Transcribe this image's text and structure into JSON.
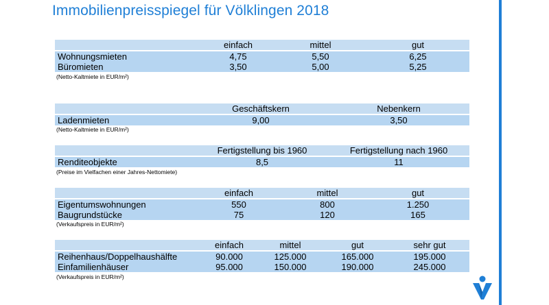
{
  "title": "Immobilienpreisspiegel für Völklingen 2018",
  "colors": {
    "accent": "#1f7fd6",
    "header_band": "#c6ddf2",
    "data_band": "#b6d5f1"
  },
  "tables": {
    "t1": {
      "headers": [
        "einfach",
        "mittel",
        "gut"
      ],
      "rows": [
        {
          "label": "Wohnungsmieten",
          "values": [
            "4,75",
            "5,50",
            "6,25"
          ]
        },
        {
          "label": "Büromieten",
          "values": [
            "3,50",
            "5,00",
            "5,25"
          ]
        }
      ],
      "note": "(Netto-Kaltmiete in EUR/m²)"
    },
    "t2": {
      "headers": [
        "Geschäftskern",
        "Nebenkern"
      ],
      "rows": [
        {
          "label": "Ladenmieten",
          "values": [
            "9,00",
            "3,50"
          ]
        }
      ],
      "note": "(Netto-Kaltmiete in EUR/m²)"
    },
    "t3": {
      "headers": [
        "Fertigstellung bis 1960",
        "Fertigstellung nach 1960"
      ],
      "rows": [
        {
          "label": "Renditeobjekte",
          "values": [
            "8,5",
            "11"
          ]
        }
      ],
      "note": "(Preise im Vielfachen einer Jahres-Nettomiete)"
    },
    "t4": {
      "headers": [
        "einfach",
        "mittel",
        "gut"
      ],
      "rows": [
        {
          "label": "Eigentumswohnungen",
          "values": [
            "550",
            "800",
            "1.250"
          ]
        },
        {
          "label": "Baugrundstücke",
          "values": [
            "75",
            "120",
            "165"
          ]
        }
      ],
      "note": "(Verkaufspreis in EUR/m²)"
    },
    "t5": {
      "headers": [
        "einfach",
        "mittel",
        "gut",
        "sehr gut"
      ],
      "rows": [
        {
          "label": "Reihenhaus/Doppelhaushälfte",
          "values": [
            "90.000",
            "125.000",
            "165.000",
            "195.000"
          ]
        },
        {
          "label": "Einfamilienhäuser",
          "values": [
            "95.000",
            "150.000",
            "190.000",
            "245.000"
          ]
        }
      ],
      "note": "(Verkaufspreis in EUR/m²)"
    }
  },
  "logo_icon": "v-logo-icon"
}
